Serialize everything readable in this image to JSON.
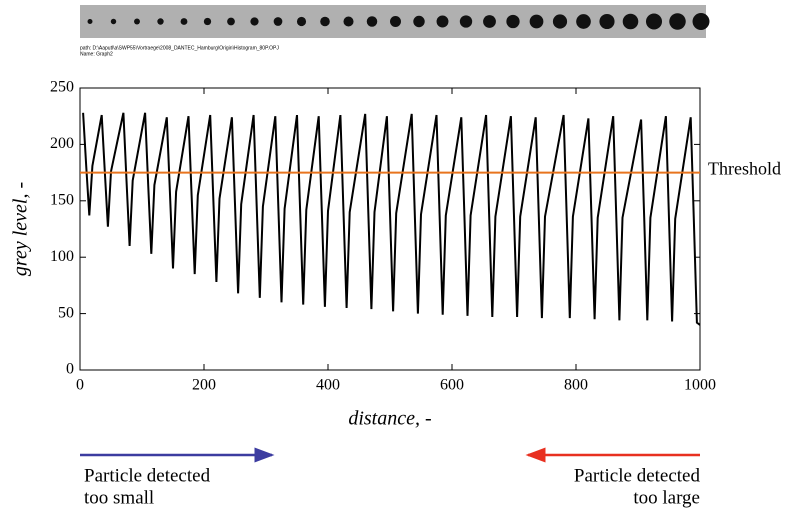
{
  "header": {
    "path": "path: D:\\Aaputl\\a\\SWP55\\Vortraege\\2008_DANTEC_Hamburg\\Origin\\Histogram_80P.OPJ",
    "name": "Name: Graph2"
  },
  "chart_data": {
    "type": "line",
    "xlabel": "distance, -",
    "ylabel": "grey level, -",
    "xlim": [
      0,
      1000
    ],
    "xticks": [
      0,
      200,
      400,
      600,
      800,
      1000
    ],
    "ylim": [
      0,
      250
    ],
    "yticks": [
      0,
      50,
      100,
      150,
      200,
      250
    ],
    "x": [
      5,
      10,
      15,
      20,
      35,
      40,
      45,
      50,
      70,
      75,
      80,
      85,
      105,
      110,
      115,
      120,
      140,
      145,
      150,
      155,
      175,
      180,
      185,
      190,
      210,
      215,
      220,
      225,
      245,
      250,
      255,
      260,
      280,
      285,
      290,
      295,
      315,
      320,
      325,
      330,
      350,
      355,
      360,
      365,
      385,
      390,
      395,
      400,
      420,
      425,
      430,
      435,
      460,
      465,
      470,
      475,
      495,
      500,
      505,
      510,
      535,
      540,
      545,
      550,
      575,
      580,
      585,
      590,
      615,
      620,
      625,
      630,
      655,
      660,
      665,
      670,
      695,
      700,
      705,
      710,
      735,
      740,
      745,
      750,
      780,
      785,
      790,
      795,
      820,
      825,
      830,
      835,
      860,
      865,
      870,
      875,
      905,
      910,
      915,
      920,
      945,
      950,
      955,
      960,
      985,
      990,
      995,
      1000
    ],
    "series": [
      {
        "color": "#000000",
        "values": [
          228,
          181,
          137,
          181,
          226,
          176,
          127,
          176,
          228,
          168,
          110,
          168,
          228,
          164,
          103,
          164,
          224,
          158,
          90,
          158,
          225,
          155,
          85,
          155,
          226,
          152,
          78,
          152,
          224,
          147,
          68,
          147,
          226,
          145,
          64,
          145,
          225,
          143,
          60,
          143,
          226,
          142,
          58,
          142,
          225,
          141,
          56,
          141,
          226,
          140,
          55,
          140,
          227,
          140,
          54,
          140,
          225,
          139,
          52,
          139,
          227,
          138,
          50,
          138,
          226,
          137,
          49,
          137,
          224,
          137,
          48,
          137,
          226,
          136,
          47,
          136,
          225,
          136,
          47,
          136,
          224,
          136,
          46,
          136,
          226,
          136,
          46,
          136,
          223,
          135,
          45,
          135,
          225,
          135,
          44,
          135,
          222,
          135,
          44,
          135,
          225,
          134,
          43,
          134,
          224,
          134,
          42,
          40
        ]
      }
    ],
    "threshold": {
      "value": 175,
      "label": "Threshold",
      "color": "#e8741e"
    },
    "annotations": [
      {
        "text": [
          "Particle detected",
          "too small"
        ],
        "color": "#3c3ca0",
        "direction": "right"
      },
      {
        "text": [
          "Particle detected",
          "too large"
        ],
        "color": "#e83020",
        "direction": "left"
      }
    ]
  }
}
